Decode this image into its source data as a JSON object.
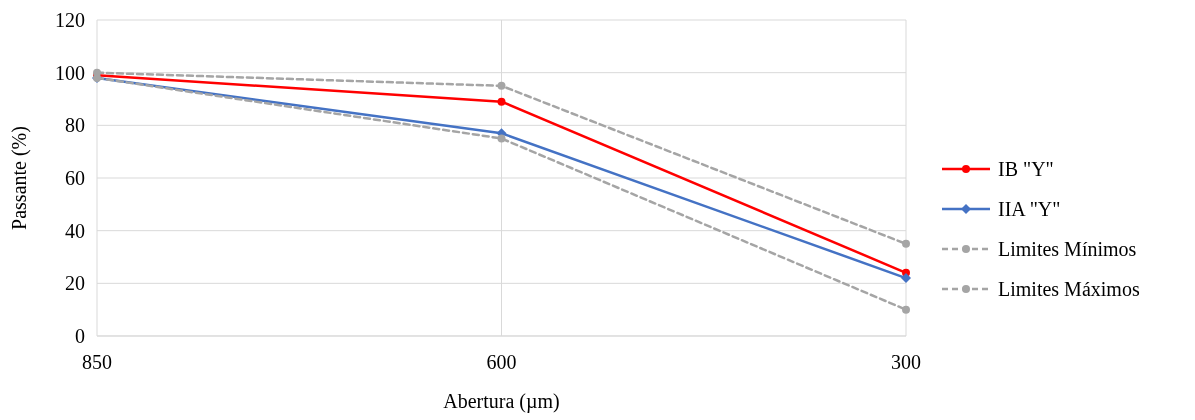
{
  "chart_data": {
    "type": "line",
    "xlabel": "Abertura (µm)",
    "ylabel": "Passante (%)",
    "categories": [
      "850",
      "600",
      "300"
    ],
    "ylim": [
      0,
      120
    ],
    "yticks": [
      0,
      20,
      40,
      60,
      80,
      100,
      120
    ],
    "grid": true,
    "legend": "right",
    "series": [
      {
        "name": "IB \"Y\"",
        "color": "#ff0000",
        "values": [
          99,
          89,
          24
        ],
        "marker": "circle",
        "line_style": "solid"
      },
      {
        "name": "IIA \"Y\"",
        "color": "#4472c4",
        "values": [
          98,
          77,
          22
        ],
        "marker": "diamond",
        "line_style": "solid"
      },
      {
        "name": "Limites Mínimos",
        "color": "#a5a5a5",
        "values": [
          98,
          75,
          10
        ],
        "marker": "circle",
        "line_style": "dashed"
      },
      {
        "name": "Limites Máximos",
        "color": "#a5a5a5",
        "values": [
          100,
          95,
          35
        ],
        "marker": "circle",
        "line_style": "dashed"
      }
    ]
  }
}
